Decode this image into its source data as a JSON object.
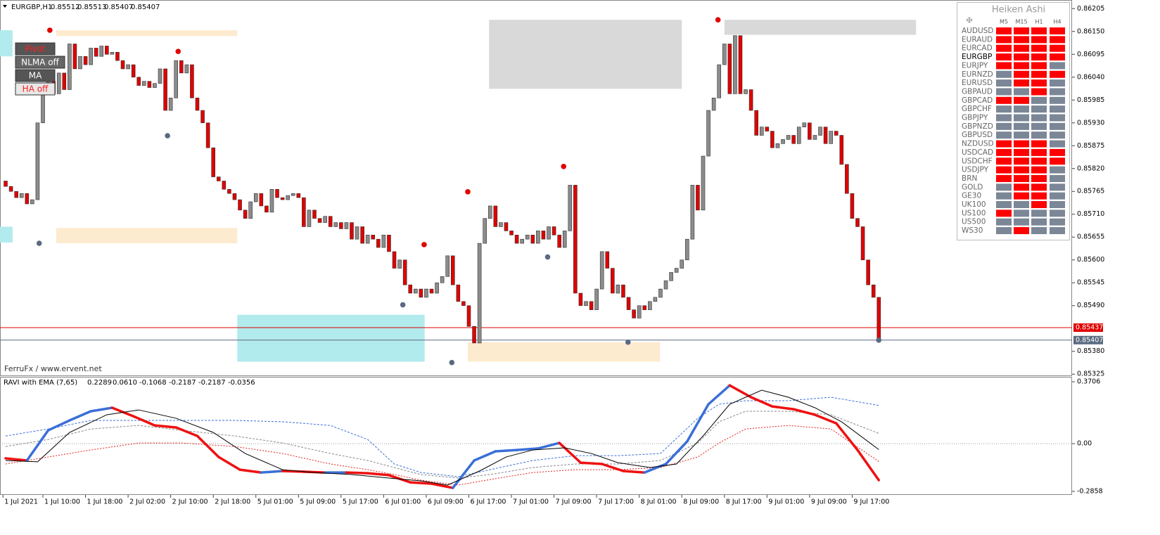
{
  "chart_data": [
    {
      "type": "candlestick",
      "title": "EURGBP,H1",
      "readout": [
        "0.85512",
        "0.85513",
        "0.85407",
        "0.85407"
      ],
      "watermark": "FerruFx / www.ervent.net",
      "up_color": "#8c8c8c",
      "down_color": "#e00000",
      "xlim": [
        -1.06,
        200.3
      ],
      "ylim": [
        0.85322,
        0.86219
      ],
      "yticks": [
        0.86205,
        {
          "value": 0.8615,
          "label": "0.86150"
        },
        0.86095,
        {
          "value": 0.8604,
          "label": "0.86040"
        },
        0.85985,
        {
          "value": 0.8593,
          "label": "0.85930"
        },
        0.85875,
        {
          "value": 0.8582,
          "label": "0.85820"
        },
        0.85765,
        {
          "value": 0.8571,
          "label": "0.85710"
        },
        0.85655,
        {
          "value": 0.856,
          "label": "0.85600"
        },
        0.85545,
        {
          "value": 0.8549,
          "label": "0.85490"
        },
        {
          "value": 0.8538,
          "label": "0.85380"
        },
        0.85325
      ],
      "first_open": 0.8579,
      "close": [
        0.85777,
        0.85765,
        0.8575,
        0.8576,
        0.85735,
        0.85745,
        0.8593,
        0.8601,
        0.8603,
        0.86,
        0.8605,
        0.8601,
        0.8612,
        0.8606,
        0.8609,
        0.8607,
        0.8611,
        0.8609,
        0.86115,
        0.86095,
        0.861,
        0.8608,
        0.8606,
        0.8607,
        0.8604,
        0.8602,
        0.8603,
        0.86015,
        0.86025,
        0.8606,
        0.8596,
        0.8599,
        0.8608,
        0.8605,
        0.8607,
        0.8599,
        0.8596,
        0.8593,
        0.8587,
        0.858,
        0.8579,
        0.8577,
        0.8576,
        0.85745,
        0.8572,
        0.857,
        0.8574,
        0.8576,
        0.8573,
        0.85715,
        0.8577,
        0.8575,
        0.85745,
        0.85755,
        0.8576,
        0.8575,
        0.8568,
        0.8572,
        0.857,
        0.8569,
        0.85705,
        0.8568,
        0.8569,
        0.85675,
        0.8569,
        0.8565,
        0.8568,
        0.8564,
        0.8566,
        0.8565,
        0.8563,
        0.8566,
        0.8562,
        0.8558,
        0.856,
        0.8554,
        0.8552,
        0.8553,
        0.8551,
        0.8553,
        0.8552,
        0.85545,
        0.8556,
        0.8561,
        0.8554,
        0.855,
        0.8549,
        0.8544,
        0.854,
        0.8564,
        0.857,
        0.8573,
        0.8568,
        0.8569,
        0.8567,
        0.8566,
        0.8564,
        0.8565,
        0.8566,
        0.8564,
        0.8567,
        0.8565,
        0.8568,
        0.8566,
        0.8563,
        0.8567,
        0.8578,
        0.8552,
        0.8549,
        0.855,
        0.8548,
        0.8553,
        0.8562,
        0.8558,
        0.8552,
        0.8554,
        0.8551,
        0.8548,
        0.8546,
        0.8549,
        0.8548,
        0.855,
        0.8551,
        0.8553,
        0.8555,
        0.8557,
        0.8558,
        0.856,
        0.8565,
        0.8578,
        0.8572,
        0.8585,
        0.8596,
        0.8599,
        0.8607,
        0.8612,
        0.86,
        0.8614,
        0.86,
        0.8601,
        0.8596,
        0.859,
        0.8592,
        0.8591,
        0.8587,
        0.8588,
        0.8589,
        0.859,
        0.8588,
        0.8592,
        0.8593,
        0.8589,
        0.859,
        0.8592,
        0.8588,
        0.8591,
        0.859,
        0.8583,
        0.8576,
        0.857,
        0.8568,
        0.856,
        0.8554,
        0.8551,
        0.85407
      ],
      "pivots_high": [
        {
          "bar": 8.3,
          "price": 0.86153
        },
        {
          "bar": 32.4,
          "price": 0.86102
        },
        {
          "bar": 78.6,
          "price": 0.85637
        },
        {
          "bar": 86.8,
          "price": 0.85764
        },
        {
          "bar": 104.8,
          "price": 0.85825
        },
        {
          "bar": 133.8,
          "price": 0.86178
        }
      ],
      "pivots_low": [
        {
          "bar": 6.3,
          "price": 0.8564
        },
        {
          "bar": 30.4,
          "price": 0.85899
        },
        {
          "bar": 74.6,
          "price": 0.85492
        },
        {
          "bar": 83.8,
          "price": 0.85353
        },
        {
          "bar": 101.8,
          "price": 0.85607
        },
        {
          "bar": 116.9,
          "price": 0.85402
        },
        {
          "bar": 164,
          "price": 0.85407
        }
      ],
      "high_color": "#e00000",
      "low_color": "#5a6a80",
      "zones": [
        {
          "from": 9.5,
          "to": 43.5,
          "top": 0.86153,
          "bottom": 0.86139,
          "color": "#fdebd0"
        },
        {
          "from": 9.5,
          "to": 43.5,
          "top": 0.85677,
          "bottom": 0.8564,
          "color": "#fdebd0"
        },
        {
          "from": -1.06,
          "to": 1.3,
          "top": 0.86153,
          "bottom": 0.8609,
          "color": "#b2ebed"
        },
        {
          "from": -1.06,
          "to": 1.3,
          "top": 0.8568,
          "bottom": 0.85642,
          "color": "#b2ebed"
        },
        {
          "from": 43.5,
          "to": 78.7,
          "top": 0.85468,
          "bottom": 0.85355,
          "color": "#b2ebed"
        },
        {
          "from": 86.8,
          "to": 122.9,
          "top": 0.85402,
          "bottom": 0.85355,
          "color": "#fdebd0"
        },
        {
          "from": 90.8,
          "to": 127,
          "top": 0.86178,
          "bottom": 0.86012,
          "color": "#d9d9d9"
        },
        {
          "from": 135,
          "to": 171,
          "top": 0.86178,
          "bottom": 0.86142,
          "color": "#d9d9d9"
        }
      ],
      "levels": [
        {
          "value": 0.85437,
          "color": "#e00000"
        },
        {
          "value": 0.85407,
          "color": "#5a6a80"
        }
      ]
    },
    {
      "type": "line",
      "title": "RAVI with EMA (7,65)",
      "readout": [
        "0.2289",
        "0.0610",
        "-0.1068",
        "-0.2187",
        "-0.2187",
        "-0.0356"
      ],
      "xlim": [
        -1.06,
        200.3
      ],
      "ylim": [
        -0.303,
        0.396
      ],
      "yticks": [
        0.3706,
        {
          "value": 0,
          "label": "0.00"
        },
        -0.2858
      ],
      "zero_line": true,
      "xticks": [
        {
          "value": -0.5,
          "label": "1 Jul 2021"
        },
        {
          "value": 7,
          "label": "1 Jul 10:00"
        },
        {
          "value": 15,
          "label": "1 Jul 18:00"
        },
        {
          "value": 23,
          "label": "2 Jul 02:00"
        },
        {
          "value": 31,
          "label": "2 Jul 10:00"
        },
        {
          "value": 39,
          "label": "2 Jul 18:00"
        },
        {
          "value": 47,
          "label": "5 Jul 01:00"
        },
        {
          "value": 55,
          "label": "5 Jul 09:00"
        },
        {
          "value": 63,
          "label": "5 Jul 17:00"
        },
        {
          "value": 71,
          "label": "6 Jul 01:00"
        },
        {
          "value": 79,
          "label": "6 Jul 09:00"
        },
        {
          "value": 87,
          "label": "6 Jul 17:00"
        },
        {
          "value": 95,
          "label": "7 Jul 01:00"
        },
        {
          "value": 103,
          "label": "7 Jul 09:00"
        },
        {
          "value": 111,
          "label": "7 Jul 17:00"
        },
        {
          "value": 119,
          "label": "8 Jul 01:00"
        },
        {
          "value": 127,
          "label": "8 Jul 09:00"
        },
        {
          "value": 135,
          "label": "8 Jul 17:00"
        },
        {
          "value": 143,
          "label": "9 Jul 01:00"
        },
        {
          "value": 151,
          "label": "9 Jul 09:00"
        },
        {
          "value": 159,
          "label": "9 Jul 17:00"
        }
      ],
      "series": [
        {
          "color": "#3a6fd8",
          "dash": "3,2",
          "width": 1,
          "x": [
            0,
            8,
            16,
            25,
            33,
            43,
            52,
            61,
            68,
            73,
            78,
            85,
            91,
            99,
            107,
            115,
            123,
            130,
            134,
            139,
            147,
            155,
            164
          ],
          "values": [
            0.046,
            0.088,
            0.139,
            0.139,
            0.139,
            0.139,
            0.131,
            0.109,
            0.025,
            -0.122,
            -0.173,
            -0.198,
            -0.156,
            -0.101,
            -0.072,
            -0.072,
            -0.059,
            0.152,
            0.236,
            0.257,
            0.257,
            0.278,
            0.2289
          ]
        },
        {
          "color": "#888888",
          "dash": "3,2",
          "width": 1,
          "x": [
            0,
            8,
            16,
            25,
            33,
            43,
            52,
            61,
            68,
            73,
            78,
            85,
            91,
            99,
            107,
            115,
            123,
            130,
            134,
            139,
            147,
            155,
            164
          ],
          "values": [
            -0.017,
            0.025,
            0.088,
            0.109,
            0.08,
            0.046,
            0.004,
            -0.059,
            -0.101,
            -0.143,
            -0.185,
            -0.206,
            -0.185,
            -0.143,
            -0.122,
            -0.122,
            -0.101,
            0.004,
            0.131,
            0.194,
            0.194,
            0.173,
            0.061
          ]
        },
        {
          "color": "#e02020",
          "dash": "2,2",
          "width": 1,
          "x": [
            0,
            8,
            16,
            25,
            33,
            43,
            52,
            61,
            68,
            73,
            78,
            85,
            91,
            99,
            107,
            115,
            123,
            130,
            134,
            139,
            147,
            155,
            164
          ],
          "values": [
            -0.122,
            -0.08,
            -0.038,
            0.004,
            0.004,
            -0.017,
            -0.059,
            -0.122,
            -0.156,
            -0.185,
            -0.219,
            -0.248,
            -0.215,
            -0.173,
            -0.156,
            -0.156,
            -0.143,
            -0.08,
            0.004,
            0.088,
            0.109,
            0.088,
            -0.1068
          ]
        },
        {
          "color_up": "#3a6fd8",
          "color_down": "#ee1111",
          "width": 3.5,
          "x": [
            0,
            4,
            8,
            12,
            16,
            20,
            24,
            28,
            32,
            36,
            40,
            44,
            48,
            52,
            56,
            60,
            64,
            68,
            72,
            76,
            80,
            84,
            88,
            92,
            96,
            100,
            104,
            108,
            112,
            116,
            120,
            124,
            128,
            132,
            136,
            140,
            144,
            148,
            152,
            156,
            160,
            164
          ],
          "values": [
            -0.088,
            -0.101,
            0.08,
            0.139,
            0.194,
            0.215,
            0.164,
            0.109,
            0.097,
            0.046,
            -0.08,
            -0.156,
            -0.173,
            -0.164,
            -0.168,
            -0.173,
            -0.173,
            -0.177,
            -0.189,
            -0.232,
            -0.24,
            -0.265,
            -0.101,
            -0.046,
            -0.038,
            -0.029,
            0.004,
            -0.114,
            -0.122,
            -0.164,
            -0.173,
            -0.122,
            0.013,
            0.236,
            0.349,
            0.278,
            0.223,
            0.206,
            0.173,
            0.122,
            -0.038,
            -0.2187
          ]
        },
        {
          "color": "#000000",
          "width": 1,
          "x": [
            0,
            6,
            12,
            19,
            25,
            32,
            39,
            45,
            52,
            58,
            65,
            72,
            78,
            83,
            89,
            94,
            99,
            105,
            110,
            115,
            121,
            126,
            131,
            136,
            142,
            147,
            152,
            157,
            164
          ],
          "values": [
            -0.101,
            -0.109,
            0.067,
            0.173,
            0.202,
            0.152,
            0.067,
            -0.059,
            -0.156,
            -0.173,
            -0.185,
            -0.206,
            -0.223,
            -0.248,
            -0.164,
            -0.08,
            -0.038,
            -0.025,
            -0.059,
            -0.114,
            -0.143,
            -0.122,
            0.046,
            0.236,
            0.32,
            0.278,
            0.215,
            0.131,
            -0.0356
          ]
        }
      ]
    }
  ],
  "panel": {
    "title": "Heiken Ashi",
    "columns": [
      "M5",
      "M15",
      "H1",
      "H4"
    ],
    "selected": "EURGBP",
    "colors": {
      "r": "#ff0000",
      "g": "#7b8696"
    },
    "rows": [
      {
        "symbol": "AUDUSD",
        "cells": [
          "r",
          "r",
          "r",
          "r"
        ]
      },
      {
        "symbol": "EURAUD",
        "cells": [
          "r",
          "r",
          "r",
          "r"
        ]
      },
      {
        "symbol": "EURCAD",
        "cells": [
          "r",
          "r",
          "r",
          "r"
        ]
      },
      {
        "symbol": "EURGBP",
        "cells": [
          "r",
          "r",
          "r",
          "r"
        ]
      },
      {
        "symbol": "EURJPY",
        "cells": [
          "r",
          "r",
          "r",
          "g"
        ]
      },
      {
        "symbol": "EURNZD",
        "cells": [
          "g",
          "r",
          "r",
          "r"
        ]
      },
      {
        "symbol": "EURUSD",
        "cells": [
          "g",
          "r",
          "r",
          "g"
        ]
      },
      {
        "symbol": "GBPAUD",
        "cells": [
          "g",
          "g",
          "r",
          "g"
        ]
      },
      {
        "symbol": "GBPCAD",
        "cells": [
          "r",
          "r",
          "g",
          "g"
        ]
      },
      {
        "symbol": "GBPCHF",
        "cells": [
          "g",
          "g",
          "g",
          "g"
        ]
      },
      {
        "symbol": "GBPJPY",
        "cells": [
          "g",
          "g",
          "g",
          "g"
        ]
      },
      {
        "symbol": "GBPNZD",
        "cells": [
          "g",
          "g",
          "g",
          "g"
        ]
      },
      {
        "symbol": "GBPUSD",
        "cells": [
          "g",
          "g",
          "g",
          "g"
        ]
      },
      {
        "symbol": "NZDUSD",
        "cells": [
          "r",
          "r",
          "r",
          "g"
        ]
      },
      {
        "symbol": "USDCAD",
        "cells": [
          "r",
          "r",
          "r",
          "r"
        ]
      },
      {
        "symbol": "USDCHF",
        "cells": [
          "r",
          "r",
          "r",
          "r"
        ]
      },
      {
        "symbol": "USDJPY",
        "cells": [
          "r",
          "r",
          "r",
          "g"
        ]
      },
      {
        "symbol": "BRN",
        "cells": [
          "r",
          "r",
          "r",
          "g"
        ]
      },
      {
        "symbol": "GOLD",
        "cells": [
          "g",
          "r",
          "r",
          "g"
        ]
      },
      {
        "symbol": "GE30",
        "cells": [
          "g",
          "r",
          "r",
          "g"
        ]
      },
      {
        "symbol": "UK100",
        "cells": [
          "g",
          "g",
          "r",
          "g"
        ]
      },
      {
        "symbol": "US100",
        "cells": [
          "r",
          "g",
          "g",
          "g"
        ]
      },
      {
        "symbol": "US500",
        "cells": [
          "g",
          "g",
          "g",
          "g"
        ]
      },
      {
        "symbol": "WS30",
        "cells": [
          "g",
          "r",
          "g",
          "g"
        ]
      }
    ]
  },
  "buttons": [
    {
      "label": "Pivot",
      "bg": "#555555",
      "fg": "#ff2020"
    },
    {
      "label": "NLMA off",
      "bg": "#666666",
      "fg": "#ffffff"
    },
    {
      "label": "MA",
      "bg": "#555555",
      "fg": "#ffffff"
    },
    {
      "label": "HA off",
      "bg": "#e8e8e8",
      "fg": "#ff2020"
    }
  ]
}
